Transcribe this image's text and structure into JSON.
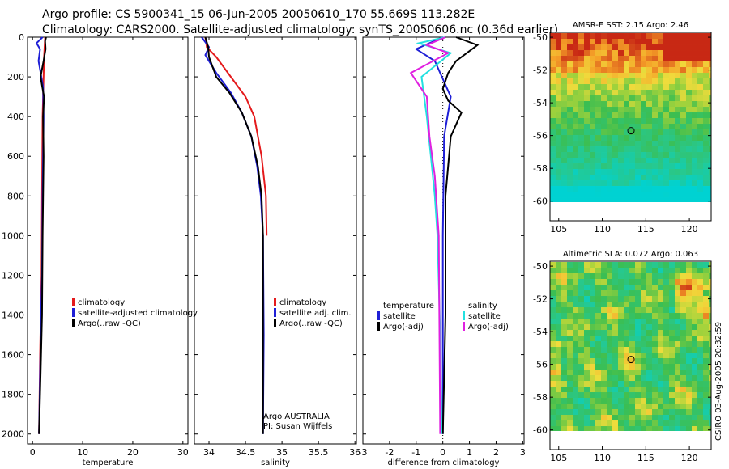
{
  "header": {
    "line1": "Argo profile: CS 5900341_15 06-Jun-2005 20050610_170 55.669S 113.282E",
    "line2": "Climatology: CARS2000. Satellite-adjusted climatology: synTS_20050606.nc (0.36d earlier)"
  },
  "side_stamp": "CSIRO 03-Aug-2005 20:32:59",
  "colors": {
    "climatology": "#e41a1c",
    "satellite": "#1f1fd6",
    "argo": "#000000",
    "sal_satellite": "#22e0e0",
    "sal_argo": "#e020e0"
  },
  "depth_ticks": [
    0,
    200,
    400,
    600,
    800,
    1000,
    1200,
    1400,
    1600,
    1800,
    2000
  ],
  "chart_data": [
    {
      "type": "line",
      "id": "temperature",
      "xlabel": "temperature",
      "xlim": [
        -1,
        31
      ],
      "ylim": [
        2050,
        0
      ],
      "xticks": [
        0,
        10,
        20,
        30
      ],
      "legend": [
        "climatology",
        "satellite-adjusted climatology",
        "Argo(..raw -QC)"
      ],
      "series": [
        {
          "name": "climatology",
          "color": "climatology",
          "x": [
            2.5,
            2.4,
            2.3,
            2.2,
            2.0,
            1.9,
            1.8,
            1.5,
            1.3
          ],
          "y": [
            0,
            50,
            100,
            200,
            400,
            800,
            1200,
            1600,
            2000
          ]
        },
        {
          "name": "satellite-adjusted climatology",
          "color": "satellite",
          "x": [
            2.0,
            0.8,
            1.5,
            1.2,
            2.1,
            2.2,
            2.0,
            1.9,
            1.7,
            1.5,
            1.3
          ],
          "y": [
            0,
            30,
            60,
            120,
            250,
            400,
            800,
            1200,
            1400,
            1700,
            2000
          ]
        },
        {
          "name": "Argo(..raw -QC)",
          "color": "argo",
          "x": [
            2.7,
            2.5,
            2.6,
            2.2,
            1.6,
            2.0,
            2.3,
            2.1,
            2.2,
            2.0,
            1.9,
            1.6,
            1.3
          ],
          "y": [
            0,
            20,
            60,
            120,
            200,
            260,
            300,
            400,
            600,
            1000,
            1400,
            1700,
            2000
          ]
        }
      ]
    },
    {
      "type": "line",
      "id": "salinity",
      "xlabel": "salinity",
      "xlim": [
        33.8,
        36.02
      ],
      "ylim": [
        2050,
        0
      ],
      "xticks": [
        34,
        34.5,
        35,
        35.5,
        36
      ],
      "legend": [
        "climatology",
        "satellite adj. clim.",
        "Argo(..raw -QC)"
      ],
      "annotation": [
        "Argo AUSTRALIA",
        "PI: Susan Wijffels"
      ],
      "series": [
        {
          "name": "climatology",
          "color": "climatology",
          "x": [
            33.95,
            33.97,
            34.1,
            34.3,
            34.5,
            34.62,
            34.72,
            34.78,
            34.79
          ],
          "y": [
            0,
            50,
            100,
            200,
            300,
            400,
            600,
            800,
            1000
          ]
        },
        {
          "name": "satellite adj. clim.",
          "color": "satellite",
          "x": [
            33.9,
            34.0,
            33.95,
            34.1,
            34.3,
            34.45,
            34.58,
            34.66,
            34.71,
            34.74,
            34.75,
            34.74
          ],
          "y": [
            0,
            50,
            90,
            180,
            280,
            380,
            500,
            650,
            800,
            1000,
            1500,
            2000
          ]
        },
        {
          "name": "Argo(..raw -QC)",
          "color": "argo",
          "x": [
            33.95,
            33.99,
            34.0,
            34.1,
            34.28,
            34.45,
            34.58,
            34.67,
            34.72,
            34.74,
            34.74
          ],
          "y": [
            0,
            50,
            100,
            200,
            280,
            380,
            500,
            650,
            800,
            1000,
            2000
          ]
        }
      ]
    },
    {
      "type": "line",
      "id": "difference",
      "xlabel": "difference from climatology",
      "xlim": [
        -3,
        3.05
      ],
      "ylim": [
        2050,
        0
      ],
      "xticks": [
        -3,
        -2,
        -1,
        0,
        1,
        2,
        3
      ],
      "legend_left": [
        "temperature",
        "satellite",
        "Argo(-adj)"
      ],
      "legend_right": [
        "salinity",
        "satellite",
        "Argo(-adj)"
      ],
      "series": [
        {
          "name": "temperature satellite",
          "color": "satellite",
          "x": [
            0.0,
            -0.5,
            -1.0,
            -0.3,
            0.3,
            0.05,
            0.0,
            0.0
          ],
          "y": [
            0,
            30,
            60,
            120,
            300,
            500,
            1000,
            2000
          ]
        },
        {
          "name": "temperature Argo(-adj)",
          "color": "argo",
          "x": [
            0.5,
            1.3,
            0.5,
            0.2,
            0.0,
            0.2,
            0.7,
            0.3,
            0.1,
            0.1,
            0.0
          ],
          "y": [
            0,
            40,
            120,
            180,
            260,
            320,
            380,
            500,
            800,
            1400,
            2000
          ]
        },
        {
          "name": "salinity satellite",
          "color": "sal_satellite",
          "x": [
            0.1,
            -0.9,
            0.3,
            -0.8,
            -0.6,
            -0.45,
            -0.3,
            -0.2,
            -0.1,
            -0.05
          ],
          "y": [
            0,
            30,
            80,
            200,
            400,
            600,
            800,
            1000,
            1500,
            2000
          ]
        },
        {
          "name": "salinity Argo(-adj)",
          "color": "sal_argo",
          "x": [
            0.1,
            -0.6,
            0.2,
            -1.2,
            -0.6,
            -0.5,
            -0.3,
            -0.15,
            -0.1
          ],
          "y": [
            0,
            40,
            80,
            180,
            300,
            500,
            700,
            1000,
            2000
          ]
        }
      ]
    },
    {
      "type": "heatmap",
      "id": "sst_map",
      "title": "AMSR-E SST: 2.15 Argo: 2.46",
      "xlim": [
        104,
        122.5
      ],
      "ylim": [
        -61.2,
        -49.7
      ],
      "xticks": [
        105,
        110,
        115,
        120
      ],
      "yticks": [
        -50,
        -52,
        -54,
        -56,
        -58,
        -60
      ],
      "marker": {
        "lon": 113.3,
        "lat": -55.7
      }
    },
    {
      "type": "heatmap",
      "id": "sla_map",
      "title": "Altimetric SLA: 0.072 Argo: 0.063",
      "xlim": [
        104,
        122.5
      ],
      "ylim": [
        -61.2,
        -49.7
      ],
      "xticks": [
        105,
        110,
        115,
        120
      ],
      "yticks": [
        -50,
        -52,
        -54,
        -56,
        -58,
        -60
      ],
      "marker": {
        "lon": 113.3,
        "lat": -55.7
      }
    }
  ]
}
